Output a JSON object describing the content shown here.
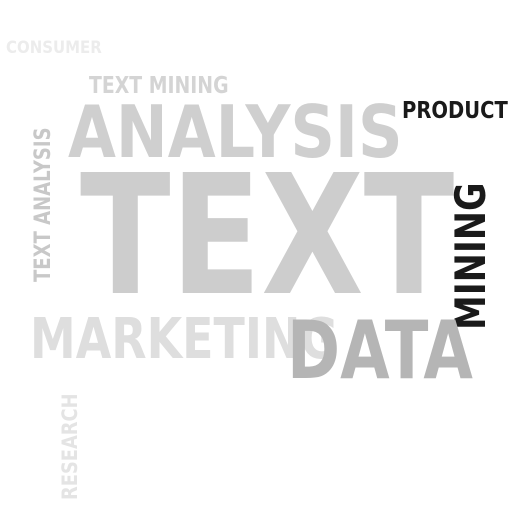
{
  "colors": {
    "background": "#ffffff",
    "very_light_gray": "#ececec",
    "light_gray": "#d4d4d4",
    "medium_gray": "#bdbdbd",
    "dark": "#1a1a1a"
  },
  "words": {
    "consumer": {
      "text": "CONSUMER",
      "color": "#ececec"
    },
    "text_mining_small": {
      "text": "TEXT MINING",
      "color": "#d4d4d4"
    },
    "analysis": {
      "text": "ANALYSIS",
      "color": "#cfcfcf"
    },
    "product": {
      "text": "PRODUCT",
      "color": "#1a1a1a"
    },
    "text_big": {
      "text": "TEXT",
      "color": "#cdcdcd"
    },
    "text_analysis_vertical": {
      "text": "TEXT ANALYSIS",
      "color": "#c8c8c8"
    },
    "mining_vertical": {
      "text": "MINING",
      "color": "#1a1a1a"
    },
    "marketing": {
      "text": "MARKETING",
      "color": "#dedede"
    },
    "data": {
      "text": "DATA",
      "color": "#b5b5b5"
    },
    "research_vertical": {
      "text": "RESEARCH",
      "color": "#e4e4e4"
    }
  }
}
